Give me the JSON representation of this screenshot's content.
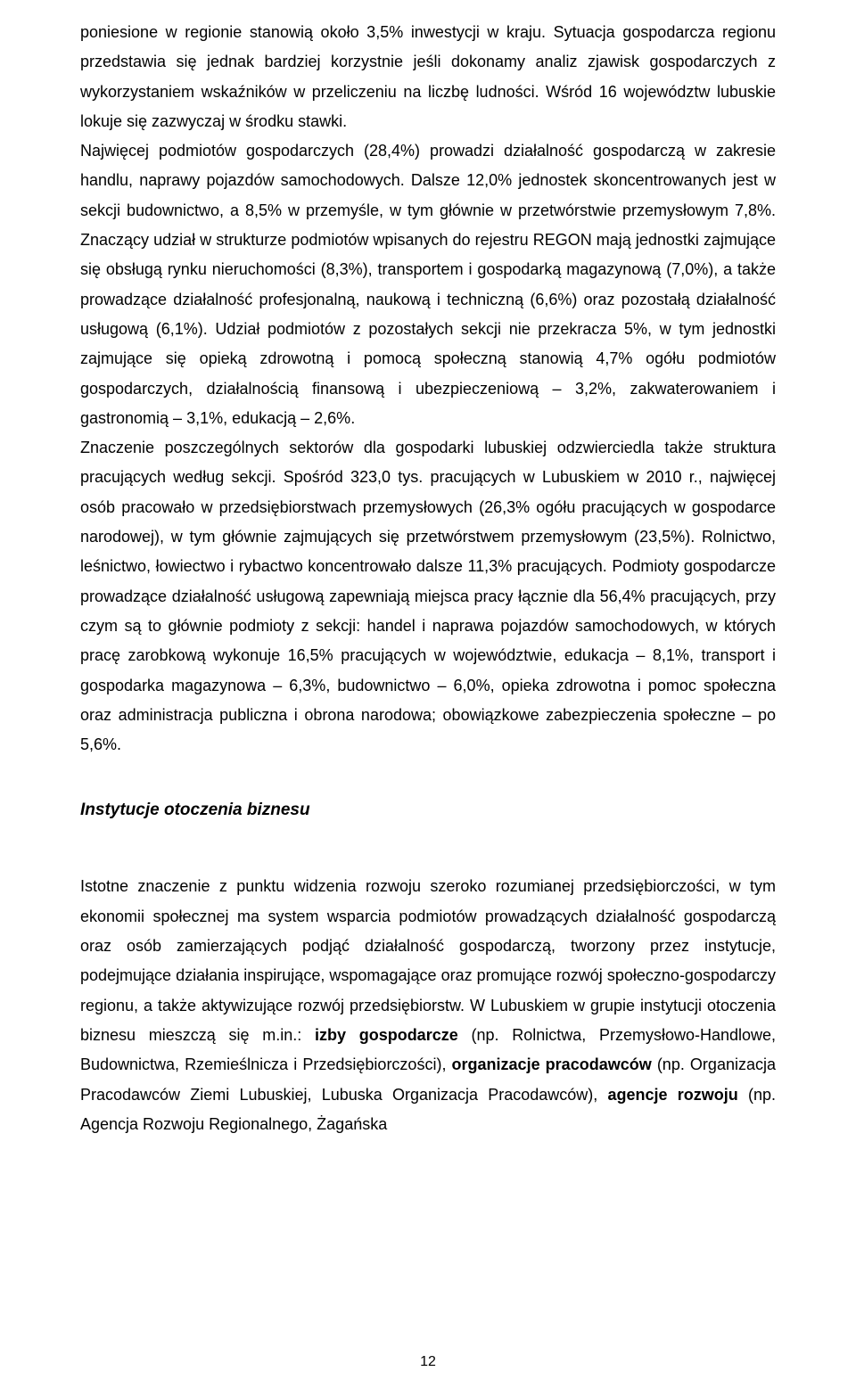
{
  "para1": "poniesione w regionie stanowią około 3,5% inwestycji w kraju. Sytuacja gospodarcza regionu przedstawia się jednak bardziej korzystnie jeśli dokonamy analiz zjawisk gospodarczych z wykorzystaniem wskaźników w przeliczeniu na liczbę ludności. Wśród 16 województw lubuskie lokuje się zazwyczaj w środku stawki.",
  "para2": "Najwięcej podmiotów gospodarczych (28,4%) prowadzi działalność gospodarczą w zakresie handlu, naprawy pojazdów samochodowych. Dalsze 12,0% jednostek skoncentrowanych jest w sekcji budownictwo, a 8,5% w przemyśle, w tym głównie w przetwórstwie przemysłowym 7,8%. Znaczący udział w strukturze podmiotów wpisanych do rejestru REGON mają jednostki zajmujące się obsługą rynku nieruchomości (8,3%), transportem i gospodarką magazynową (7,0%), a także prowadzące działalność profesjonalną, naukową i techniczną (6,6%) oraz pozostałą działalność usługową (6,1%). Udział podmiotów z pozostałych sekcji nie przekracza 5%, w tym jednostki zajmujące się opieką zdrowotną i pomocą społeczną stanowią 4,7% ogółu podmiotów gospodarczych, działalnością finansową i ubezpieczeniową – 3,2%, zakwaterowaniem i gastronomią – 3,1%, edukacją – 2,6%.",
  "para3": "Znaczenie poszczególnych sektorów dla gospodarki lubuskiej odzwierciedla także struktura pracujących według sekcji. Spośród 323,0 tys. pracujących w Lubuskiem w 2010 r., najwięcej osób pracowało w przedsiębiorstwach przemysłowych (26,3% ogółu pracujących w gospodarce narodowej), w tym głównie zajmujących się przetwórstwem przemysłowym (23,5%). Rolnictwo, leśnictwo, łowiectwo i rybactwo koncentrowało dalsze 11,3% pracujących. Podmioty gospodarcze prowadzące działalność usługową zapewniają miejsca pracy łącznie dla 56,4% pracujących, przy czym są to głównie podmioty z sekcji: handel i naprawa pojazdów samochodowych, w których pracę zarobkową wykonuje 16,5% pracujących w województwie, edukacja – 8,1%, transport i gospodarka magazynowa – 6,3%, budownictwo – 6,0%, opieka zdrowotna i pomoc społeczna oraz administracja publiczna i obrona narodowa; obowiązkowe zabezpieczenia społeczne – po 5,6%.",
  "heading": "Instytucje otoczenia biznesu",
  "para4_a": "Istotne znaczenie z punktu widzenia rozwoju szeroko rozumianej przedsiębiorczości, w tym ekonomii społecznej ma system wsparcia podmiotów prowadzących działalność gospodarczą oraz osób zamierzających podjąć działalność gospodarczą, tworzony przez instytucje, podejmujące działania inspirujące, wspomagające oraz promujące rozwój społeczno-gospodarczy regionu, a także aktywizujące rozwój przedsiębiorstw. W Lubuskiem w grupie instytucji otoczenia biznesu mieszczą się m.in.: ",
  "bold1": "izby gospodarcze",
  "para4_b": " (np. Rolnictwa, Przemysłowo-Handlowe, Budownictwa, Rzemieślnicza i Przedsiębiorczości), ",
  "bold2": "organizacje pracodawców",
  "para4_c": " (np. Organizacja Pracodawców Ziemi Lubuskiej, Lubuska Organizacja Pracodawców), ",
  "bold3": "agencje rozwoju",
  "para4_d": " (np. Agencja Rozwoju Regionalnego, Żagańska",
  "pageNumber": "12"
}
